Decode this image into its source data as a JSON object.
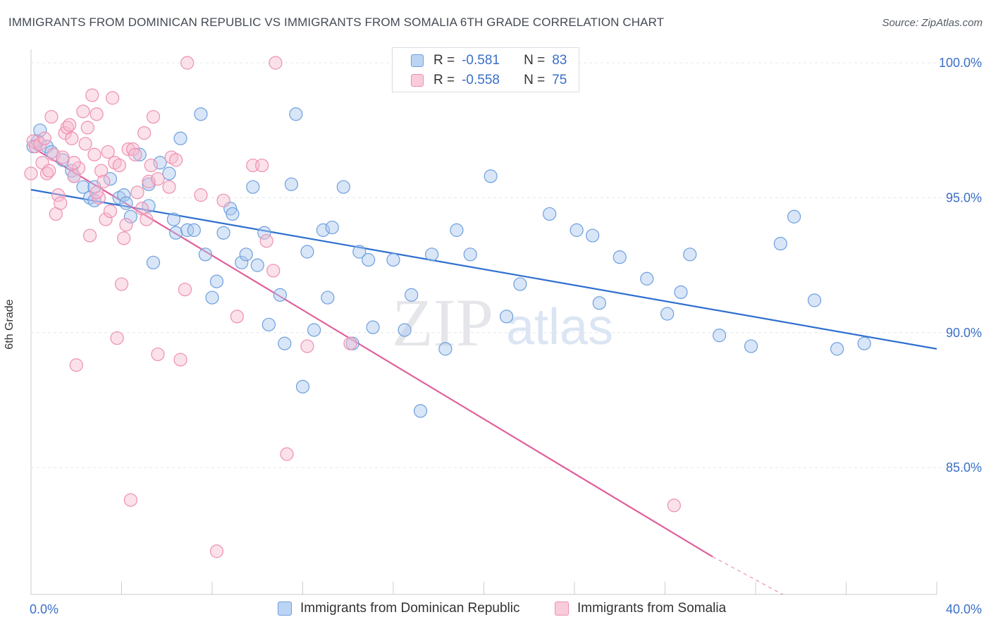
{
  "title": "IMMIGRANTS FROM DOMINICAN REPUBLIC VS IMMIGRANTS FROM SOMALIA 6TH GRADE CORRELATION CHART",
  "source": "Source: ZipAtlas.com",
  "watermark": {
    "zip": "ZIP",
    "atlas": "atlas"
  },
  "legend_top": {
    "rows": [
      {
        "r_label": "R =",
        "r_value": "-0.581",
        "n_label": "N =",
        "n_value": "83"
      },
      {
        "r_label": "R =",
        "r_value": "-0.558",
        "n_label": "N =",
        "n_value": "75"
      }
    ]
  },
  "colors": {
    "blue_fill": "#a9c8f0",
    "blue_stroke": "#6e9fdd",
    "blue_line": "#2f6fcf",
    "pink_fill": "#f6bcd0",
    "pink_stroke": "#ee8fb0",
    "pink_line": "#e0609a",
    "tick_text": "#3a6fc8",
    "grid": "#e3e6ea"
  },
  "chart_data": {
    "type": "scatter",
    "title": "IMMIGRANTS FROM DOMINICAN REPUBLIC VS IMMIGRANTS FROM SOMALIA 6TH GRADE CORRELATION CHART",
    "xlabel": "",
    "ylabel": "6th Grade",
    "xlim": [
      0,
      40
    ],
    "ylim": [
      80.3,
      100.5
    ],
    "x_tick_labels": [
      {
        "value": 0,
        "label": "0.0%"
      },
      {
        "value": 40,
        "label": "40.0%"
      }
    ],
    "y_tick_labels": [
      {
        "value": 85,
        "label": "85.0%"
      },
      {
        "value": 90,
        "label": "90.0%"
      },
      {
        "value": 95,
        "label": "95.0%"
      },
      {
        "value": 100,
        "label": "100.0%"
      }
    ],
    "grid": true,
    "legend_position": "bottom",
    "series": [
      {
        "name": "Immigrants from Dominican Republic",
        "color": "#6e9fdd",
        "points": [
          [
            0.1,
            96.9
          ],
          [
            0.3,
            97.1
          ],
          [
            0.4,
            97.5
          ],
          [
            0.7,
            96.9
          ],
          [
            0.9,
            96.7
          ],
          [
            1.4,
            96.4
          ],
          [
            1.8,
            96.0
          ],
          [
            1.9,
            95.8
          ],
          [
            2.3,
            95.4
          ],
          [
            2.6,
            95.0
          ],
          [
            2.8,
            94.9
          ],
          [
            2.8,
            95.4
          ],
          [
            3.5,
            95.7
          ],
          [
            3.9,
            95.0
          ],
          [
            4.1,
            95.1
          ],
          [
            4.2,
            94.8
          ],
          [
            4.4,
            94.3
          ],
          [
            4.8,
            96.6
          ],
          [
            5.2,
            94.7
          ],
          [
            5.2,
            95.5
          ],
          [
            5.4,
            92.6
          ],
          [
            5.7,
            96.3
          ],
          [
            6.1,
            95.9
          ],
          [
            6.3,
            94.2
          ],
          [
            6.4,
            93.7
          ],
          [
            6.6,
            97.2
          ],
          [
            6.9,
            93.8
          ],
          [
            7.2,
            93.8
          ],
          [
            7.5,
            98.1
          ],
          [
            7.7,
            92.9
          ],
          [
            8.0,
            91.3
          ],
          [
            8.2,
            91.9
          ],
          [
            8.5,
            93.7
          ],
          [
            8.8,
            94.6
          ],
          [
            8.9,
            94.4
          ],
          [
            9.3,
            92.6
          ],
          [
            9.5,
            92.9
          ],
          [
            9.8,
            95.4
          ],
          [
            10.0,
            92.5
          ],
          [
            10.3,
            93.7
          ],
          [
            10.5,
            90.3
          ],
          [
            11.0,
            91.4
          ],
          [
            11.2,
            89.6
          ],
          [
            11.5,
            95.5
          ],
          [
            11.7,
            98.1
          ],
          [
            12.0,
            88.0
          ],
          [
            12.2,
            93.0
          ],
          [
            12.5,
            90.1
          ],
          [
            12.9,
            93.8
          ],
          [
            13.1,
            91.3
          ],
          [
            13.3,
            93.9
          ],
          [
            13.8,
            95.4
          ],
          [
            14.2,
            89.6
          ],
          [
            14.5,
            93.0
          ],
          [
            14.9,
            92.7
          ],
          [
            15.1,
            90.2
          ],
          [
            16.0,
            92.7
          ],
          [
            16.5,
            90.1
          ],
          [
            16.8,
            91.4
          ],
          [
            17.2,
            87.1
          ],
          [
            17.7,
            92.9
          ],
          [
            18.3,
            89.4
          ],
          [
            18.8,
            93.8
          ],
          [
            19.4,
            92.9
          ],
          [
            20.3,
            95.8
          ],
          [
            21.0,
            90.6
          ],
          [
            21.6,
            91.8
          ],
          [
            22.9,
            94.4
          ],
          [
            24.1,
            93.8
          ],
          [
            24.8,
            93.6
          ],
          [
            25.1,
            91.1
          ],
          [
            26.0,
            92.8
          ],
          [
            27.2,
            92.0
          ],
          [
            28.1,
            90.7
          ],
          [
            28.7,
            91.5
          ],
          [
            29.1,
            92.9
          ],
          [
            30.4,
            89.9
          ],
          [
            31.8,
            89.5
          ],
          [
            33.1,
            93.3
          ],
          [
            33.7,
            94.3
          ],
          [
            34.6,
            91.2
          ],
          [
            35.6,
            89.4
          ],
          [
            36.8,
            89.6
          ]
        ]
      },
      {
        "name": "Immigrants from Somalia",
        "color": "#ee8fb0",
        "points": [
          [
            0.0,
            95.9
          ],
          [
            0.1,
            97.1
          ],
          [
            0.2,
            96.9
          ],
          [
            0.4,
            97.0
          ],
          [
            0.5,
            96.3
          ],
          [
            0.7,
            95.9
          ],
          [
            0.8,
            96.0
          ],
          [
            0.9,
            98.0
          ],
          [
            1.0,
            96.6
          ],
          [
            1.1,
            94.4
          ],
          [
            1.2,
            95.1
          ],
          [
            1.3,
            94.8
          ],
          [
            1.4,
            96.5
          ],
          [
            1.5,
            97.4
          ],
          [
            1.6,
            97.6
          ],
          [
            1.7,
            97.7
          ],
          [
            1.8,
            97.2
          ],
          [
            1.9,
            95.8
          ],
          [
            2.0,
            88.8
          ],
          [
            2.1,
            96.1
          ],
          [
            2.3,
            98.2
          ],
          [
            2.4,
            97.0
          ],
          [
            2.5,
            97.6
          ],
          [
            2.6,
            93.6
          ],
          [
            2.7,
            98.8
          ],
          [
            2.8,
            96.6
          ],
          [
            2.9,
            98.1
          ],
          [
            3.0,
            95.0
          ],
          [
            3.1,
            96.0
          ],
          [
            3.2,
            95.6
          ],
          [
            3.3,
            94.2
          ],
          [
            3.4,
            96.7
          ],
          [
            3.5,
            94.5
          ],
          [
            3.6,
            98.7
          ],
          [
            3.7,
            96.3
          ],
          [
            3.8,
            89.8
          ],
          [
            3.9,
            96.2
          ],
          [
            4.0,
            91.8
          ],
          [
            4.1,
            93.5
          ],
          [
            4.2,
            94.0
          ],
          [
            4.3,
            96.8
          ],
          [
            4.4,
            83.8
          ],
          [
            4.5,
            96.8
          ],
          [
            4.6,
            96.6
          ],
          [
            4.7,
            95.2
          ],
          [
            4.9,
            94.6
          ],
          [
            5.0,
            97.4
          ],
          [
            5.1,
            94.2
          ],
          [
            5.2,
            95.6
          ],
          [
            5.3,
            96.2
          ],
          [
            5.4,
            98.0
          ],
          [
            5.6,
            89.2
          ],
          [
            6.1,
            95.4
          ],
          [
            6.2,
            96.5
          ],
          [
            6.4,
            96.4
          ],
          [
            6.6,
            89.0
          ],
          [
            6.8,
            91.6
          ],
          [
            6.9,
            100.0
          ],
          [
            7.5,
            95.1
          ],
          [
            8.2,
            81.9
          ],
          [
            8.5,
            94.9
          ],
          [
            9.1,
            90.6
          ],
          [
            9.8,
            96.2
          ],
          [
            10.2,
            96.2
          ],
          [
            10.4,
            93.4
          ],
          [
            10.7,
            92.3
          ],
          [
            10.8,
            100.0
          ],
          [
            11.3,
            85.5
          ],
          [
            12.2,
            89.5
          ],
          [
            14.1,
            89.6
          ],
          [
            28.4,
            83.6
          ],
          [
            0.6,
            97.2
          ],
          [
            1.9,
            96.3
          ],
          [
            2.9,
            95.2
          ],
          [
            5.6,
            95.7
          ]
        ]
      }
    ],
    "trend_lines": [
      {
        "series": "Immigrants from Dominican Republic",
        "x": [
          0,
          40
        ],
        "y": [
          95.3,
          89.4
        ]
      },
      {
        "series": "Immigrants from Somalia",
        "x": [
          0,
          30.1
        ],
        "y": [
          96.9,
          81.7
        ],
        "dashed_extension_to": [
          33.2,
          80.3
        ]
      }
    ]
  }
}
